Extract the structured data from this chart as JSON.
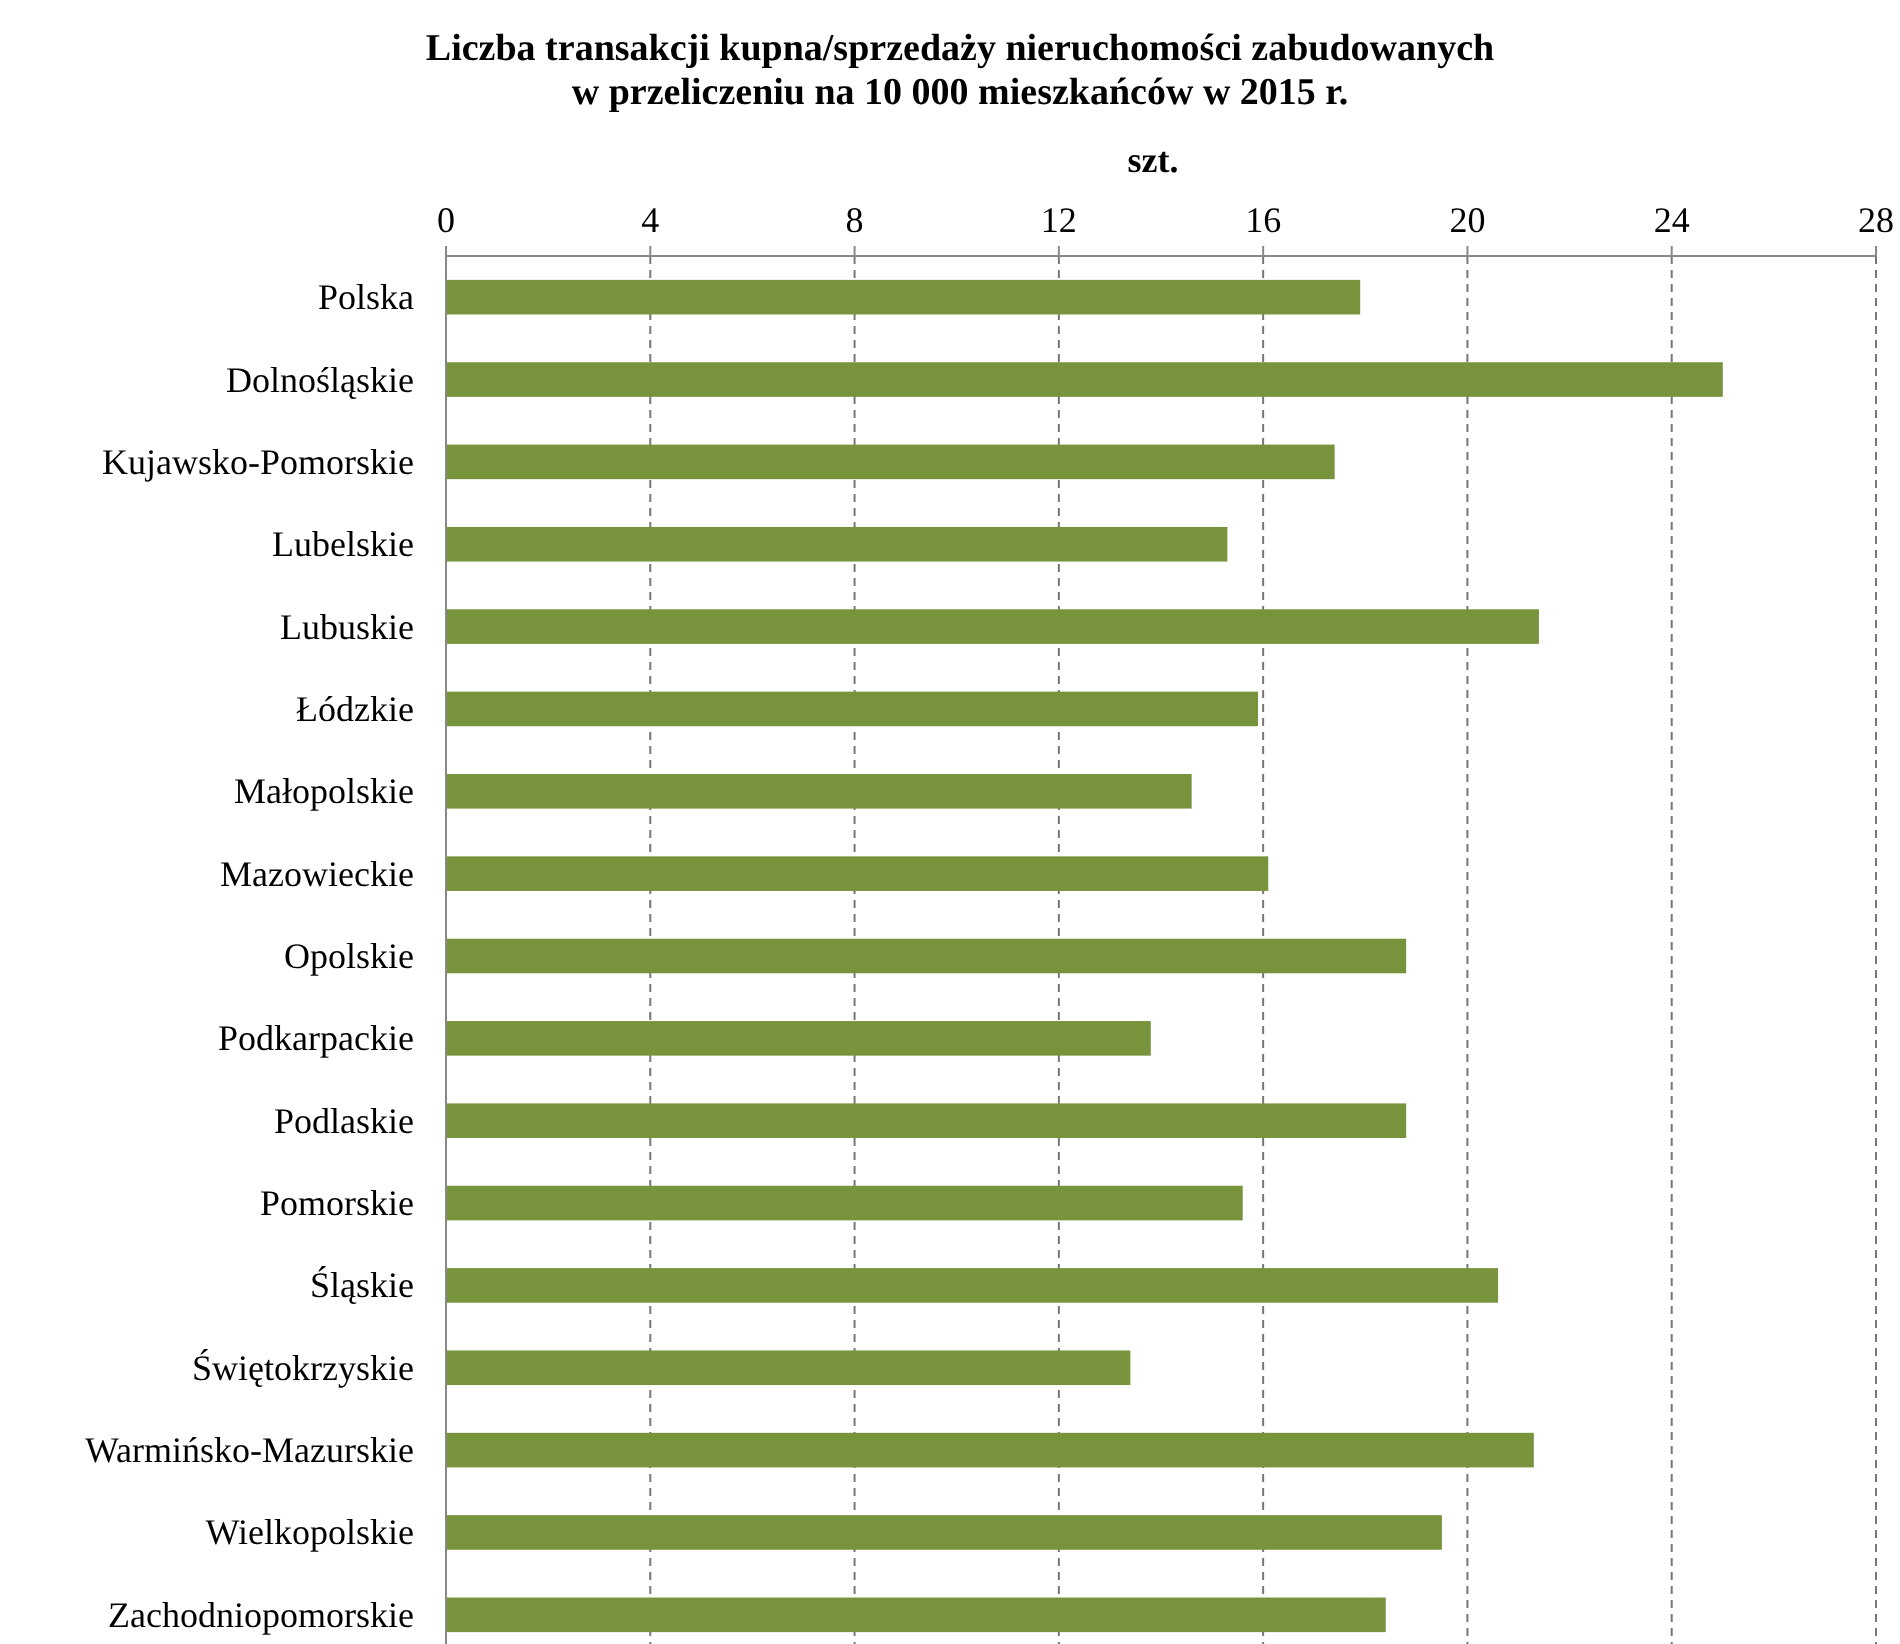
{
  "chart_data": {
    "type": "bar",
    "orientation": "horizontal",
    "title": "Liczba transakcji kupna/sprzedaży nieruchomości zabudowanych\nw przeliczeniu na 10 000 mieszkańców w 2015 r.",
    "xlabel": "szt.",
    "categories": [
      "Polska",
      "Dolnośląskie",
      "Kujawsko-Pomorskie",
      "Lubelskie",
      "Lubuskie",
      "Łódzkie",
      "Małopolskie",
      "Mazowieckie",
      "Opolskie",
      "Podkarpackie",
      "Podlaskie",
      "Pomorskie",
      "Śląskie",
      "Świętokrzyskie",
      "Warmińsko-Mazurskie",
      "Wielkopolskie",
      "Zachodniopomorskie"
    ],
    "values": [
      17.9,
      25.0,
      17.4,
      15.3,
      21.4,
      15.9,
      14.6,
      16.1,
      18.8,
      13.8,
      18.8,
      15.6,
      20.6,
      13.4,
      21.3,
      19.5,
      18.4
    ],
    "color": "#77933c",
    "xlim": [
      0,
      28
    ],
    "xticks": [
      0,
      4,
      8,
      12,
      16,
      20,
      24,
      28
    ],
    "grid": "x",
    "line_style": "dashed"
  }
}
